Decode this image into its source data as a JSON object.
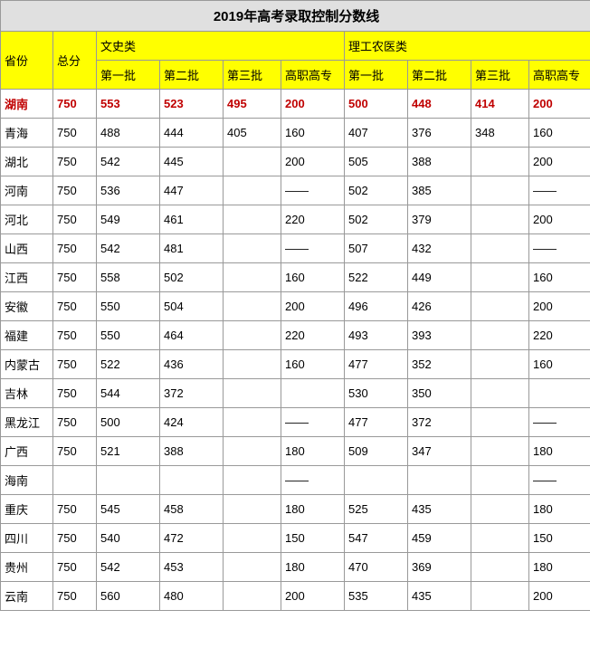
{
  "title": "2019年高考录取控制分数线",
  "colors": {
    "header_bg": "#ffff00",
    "title_bg": "#e0e0e0",
    "border": "#999999",
    "highlight_text": "#c00000"
  },
  "columns": {
    "province": "省份",
    "total": "总分",
    "group_arts": "文史类",
    "group_sci": "理工农医类",
    "batch1": "第一批",
    "batch2": "第二批",
    "batch3": "第三批",
    "voc": "高职高专"
  },
  "rows": [
    {
      "highlight": true,
      "province": "湖南",
      "total": "750",
      "a1": "553",
      "a2": "523",
      "a3": "495",
      "av": "200",
      "s1": "500",
      "s2": "448",
      "s3": "414",
      "sv": "200"
    },
    {
      "highlight": false,
      "province": "青海",
      "total": "750",
      "a1": "488",
      "a2": "444",
      "a3": "405",
      "av": "160",
      "s1": "407",
      "s2": "376",
      "s3": "348",
      "sv": "160"
    },
    {
      "highlight": false,
      "province": "湖北",
      "total": "750",
      "a1": "542",
      "a2": "445",
      "a3": "",
      "av": "200",
      "s1": "505",
      "s2": "388",
      "s3": "",
      "sv": "200"
    },
    {
      "highlight": false,
      "province": "河南",
      "total": "750",
      "a1": "536",
      "a2": "447",
      "a3": "",
      "av": "——",
      "s1": "502",
      "s2": "385",
      "s3": "",
      "sv": "——"
    },
    {
      "highlight": false,
      "province": "河北",
      "total": "750",
      "a1": "549",
      "a2": "461",
      "a3": "",
      "av": "220",
      "s1": "502",
      "s2": "379",
      "s3": "",
      "sv": "200"
    },
    {
      "highlight": false,
      "province": "山西",
      "total": "750",
      "a1": "542",
      "a2": "481",
      "a3": "",
      "av": "——",
      "s1": "507",
      "s2": "432",
      "s3": "",
      "sv": "——"
    },
    {
      "highlight": false,
      "province": "江西",
      "total": "750",
      "a1": "558",
      "a2": "502",
      "a3": "",
      "av": "160",
      "s1": "522",
      "s2": "449",
      "s3": "",
      "sv": "160"
    },
    {
      "highlight": false,
      "province": "安徽",
      "total": "750",
      "a1": "550",
      "a2": "504",
      "a3": "",
      "av": "200",
      "s1": "496",
      "s2": "426",
      "s3": "",
      "sv": "200"
    },
    {
      "highlight": false,
      "province": "福建",
      "total": "750",
      "a1": "550",
      "a2": "464",
      "a3": "",
      "av": "220",
      "s1": "493",
      "s2": "393",
      "s3": "",
      "sv": "220"
    },
    {
      "highlight": false,
      "province": "内蒙古",
      "total": "750",
      "a1": "522",
      "a2": "436",
      "a3": "",
      "av": "160",
      "s1": "477",
      "s2": "352",
      "s3": "",
      "sv": "160"
    },
    {
      "highlight": false,
      "province": "吉林",
      "total": "750",
      "a1": "544",
      "a2": "372",
      "a3": "",
      "av": "",
      "s1": "530",
      "s2": "350",
      "s3": "",
      "sv": ""
    },
    {
      "highlight": false,
      "province": "黑龙江",
      "total": "750",
      "a1": "500",
      "a2": "424",
      "a3": "",
      "av": "——",
      "s1": "477",
      "s2": "372",
      "s3": "",
      "sv": "——"
    },
    {
      "highlight": false,
      "province": "广西",
      "total": "750",
      "a1": "521",
      "a2": "388",
      "a3": "",
      "av": "180",
      "s1": "509",
      "s2": "347",
      "s3": "",
      "sv": "180"
    },
    {
      "highlight": false,
      "province": "海南",
      "total": "",
      "a1": "",
      "a2": "",
      "a3": "",
      "av": "——",
      "s1": "",
      "s2": "",
      "s3": "",
      "sv": "——"
    },
    {
      "highlight": false,
      "province": "重庆",
      "total": "750",
      "a1": "545",
      "a2": "458",
      "a3": "",
      "av": "180",
      "s1": "525",
      "s2": "435",
      "s3": "",
      "sv": "180"
    },
    {
      "highlight": false,
      "province": "四川",
      "total": "750",
      "a1": "540",
      "a2": "472",
      "a3": "",
      "av": "150",
      "s1": "547",
      "s2": "459",
      "s3": "",
      "sv": "150"
    },
    {
      "highlight": false,
      "province": "贵州",
      "total": "750",
      "a1": "542",
      "a2": "453",
      "a3": "",
      "av": "180",
      "s1": "470",
      "s2": "369",
      "s3": "",
      "sv": "180"
    },
    {
      "highlight": false,
      "province": "云南",
      "total": "750",
      "a1": "560",
      "a2": "480",
      "a3": "",
      "av": "200",
      "s1": "535",
      "s2": "435",
      "s3": "",
      "sv": "200"
    }
  ]
}
